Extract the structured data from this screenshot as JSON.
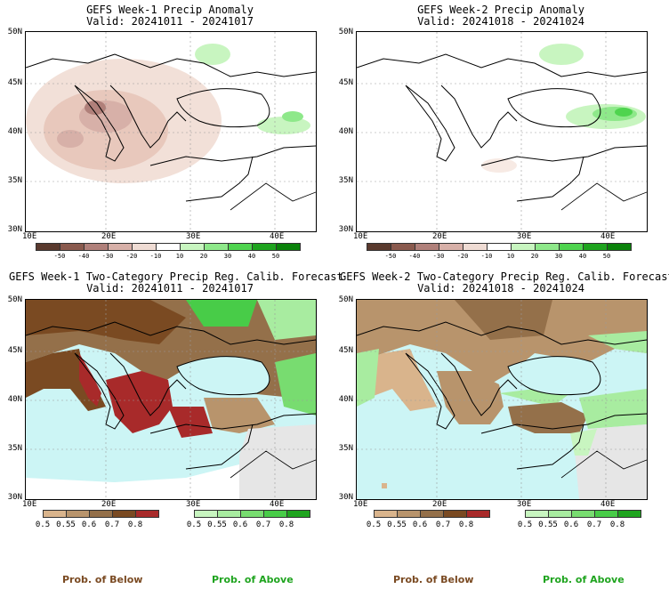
{
  "panels": {
    "p1": {
      "title": "GEFS Week-1 Precip Anomaly",
      "valid": "Valid: 20241011 - 20241017"
    },
    "p2": {
      "title": "GEFS Week-2 Precip Anomaly",
      "valid": "Valid: 20241018 - 20241024"
    },
    "p3": {
      "title": "GEFS Week-1 Two-Category Precip Reg. Calib. Forecast",
      "valid": "Valid: 20241011 - 20241017"
    },
    "p4": {
      "title": "GEFS Week-2 Two-Category Precip Reg. Calib. Forecast",
      "valid": "Valid: 20241018 - 20241024"
    }
  },
  "axes": {
    "lat_labels": [
      "50N",
      "45N",
      "40N",
      "35N",
      "30N"
    ],
    "lon_labels": [
      "10E",
      "20E",
      "30E",
      "40E"
    ]
  },
  "anomaly_colorbar": {
    "labels": [
      "-50",
      "-40",
      "-30",
      "-20",
      "-10",
      "10",
      "20",
      "30",
      "40",
      "50"
    ],
    "colors": [
      "#5a3a2e",
      "#8a5a4e",
      "#b0807a",
      "#d7b0a8",
      "#efdcd4",
      "#ffffff",
      "#c8f5c0",
      "#8ee88a",
      "#4fd44f",
      "#1fa41f",
      "#0a820a"
    ]
  },
  "below_colorbar": {
    "labels": [
      "0.5",
      "0.55",
      "0.6",
      "0.7",
      "0.8"
    ],
    "colors": [
      "#d9b48c",
      "#b8946c",
      "#94704a",
      "#7a4a22",
      "#a82a2a"
    ]
  },
  "above_colorbar": {
    "labels": [
      "0.5",
      "0.55",
      "0.6",
      "0.7",
      "0.8"
    ],
    "colors": [
      "#c8f5c0",
      "#a8eca0",
      "#78dc70",
      "#48cc48",
      "#1fa41f"
    ]
  },
  "footer": {
    "below_label": "Prob. of Below",
    "above_label": "Prob. of Above",
    "below_color": "#7a4a22",
    "above_color": "#1fa41f"
  },
  "colors": {
    "sea": "#ccf5f5",
    "land_gray": "#e6e6e6"
  }
}
